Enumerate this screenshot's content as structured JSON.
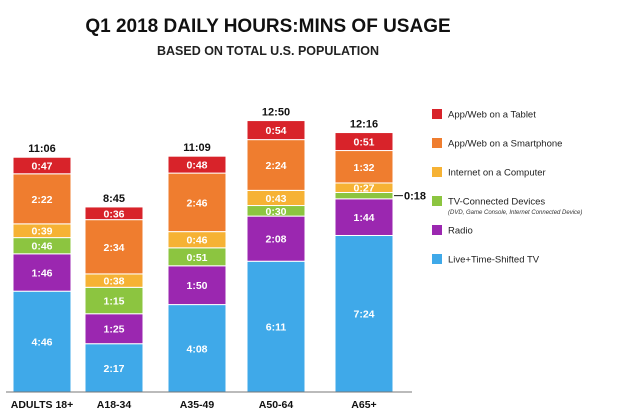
{
  "chart_data": {
    "type": "bar",
    "stacked": true,
    "title": "Q1 2018 DAILY HOURS:MINS OF USAGE",
    "subtitle": "BASED ON TOTAL U.S. POPULATION",
    "categories": [
      "ADULTS 18+",
      "A18-34",
      "A35-49",
      "A50-64",
      "A65+"
    ],
    "totals": [
      "11:06",
      "8:45",
      "11:09",
      "12:50",
      "12:16"
    ],
    "series": [
      {
        "name": "Live+Time-Shifted TV",
        "color": "#3fa9e9",
        "minutes": [
          286,
          137,
          248,
          371,
          444
        ],
        "labels": [
          "4:46",
          "2:17",
          "4:08",
          "6:11",
          "7:24"
        ]
      },
      {
        "name": "Radio",
        "color": "#9b27b0",
        "minutes": [
          106,
          85,
          110,
          128,
          104
        ],
        "labels": [
          "1:46",
          "1:25",
          "1:50",
          "2:08",
          "1:44"
        ]
      },
      {
        "name": "TV-Connected Devices",
        "note": "(DVD, Game Console, Internet Connected Device)",
        "color": "#8cc540",
        "minutes": [
          46,
          75,
          51,
          30,
          18
        ],
        "labels": [
          "0:46",
          "1:15",
          "0:51",
          "0:30",
          "0:18"
        ]
      },
      {
        "name": "Internet on a Computer",
        "color": "#f6b234",
        "minutes": [
          39,
          38,
          46,
          43,
          27
        ],
        "labels": [
          "0:39",
          "0:38",
          "0:46",
          "0:43",
          "0:27"
        ]
      },
      {
        "name": "App/Web on a Smartphone",
        "color": "#ef7d2f",
        "minutes": [
          142,
          154,
          166,
          144,
          92
        ],
        "labels": [
          "2:22",
          "2:34",
          "2:46",
          "2:24",
          "1:32"
        ]
      },
      {
        "name": "App/Web on a Tablet",
        "color": "#d8232a",
        "minutes": [
          47,
          36,
          48,
          54,
          51
        ],
        "labels": [
          "0:47",
          "0:36",
          "0:48",
          "0:54",
          "0:51"
        ]
      }
    ],
    "callout": {
      "category": "A65+",
      "series": "TV-Connected Devices",
      "label": "0:18"
    },
    "legend_position": "right",
    "grid": false
  }
}
